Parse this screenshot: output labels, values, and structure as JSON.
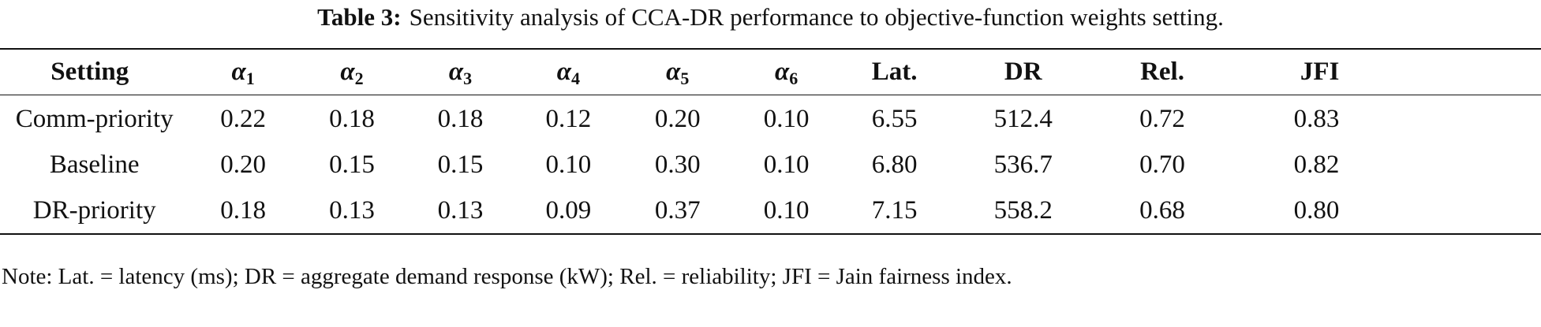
{
  "caption": {
    "label": "Table 3:",
    "text": "Sensitivity analysis of CCA-DR performance to objective-function weights setting."
  },
  "table": {
    "headers": {
      "setting": "Setting",
      "alpha_symbol": "α",
      "alpha1_sub": "1",
      "alpha2_sub": "2",
      "alpha3_sub": "3",
      "alpha4_sub": "4",
      "alpha5_sub": "5",
      "alpha6_sub": "6",
      "lat": "Lat.",
      "dr": "DR",
      "rel": "Rel.",
      "jfi": "JFI"
    },
    "rows": [
      {
        "setting": "Comm-priority",
        "a1": "0.22",
        "a2": "0.18",
        "a3": "0.18",
        "a4": "0.12",
        "a5": "0.20",
        "a6": "0.10",
        "lat": "6.55",
        "dr": "512.4",
        "rel": "0.72",
        "jfi": "0.83"
      },
      {
        "setting": "Baseline",
        "a1": "0.20",
        "a2": "0.15",
        "a3": "0.15",
        "a4": "0.10",
        "a5": "0.30",
        "a6": "0.10",
        "lat": "6.80",
        "dr": "536.7",
        "rel": "0.70",
        "jfi": "0.82"
      },
      {
        "setting": "DR-priority",
        "a1": "0.18",
        "a2": "0.13",
        "a3": "0.13",
        "a4": "0.09",
        "a5": "0.37",
        "a6": "0.10",
        "lat": "7.15",
        "dr": "558.2",
        "rel": "0.68",
        "jfi": "0.80"
      }
    ]
  },
  "note": "Note: Lat. = latency (ms); DR = aggregate demand response (kW); Rel. = reliability; JFI = Jain fairness index."
}
